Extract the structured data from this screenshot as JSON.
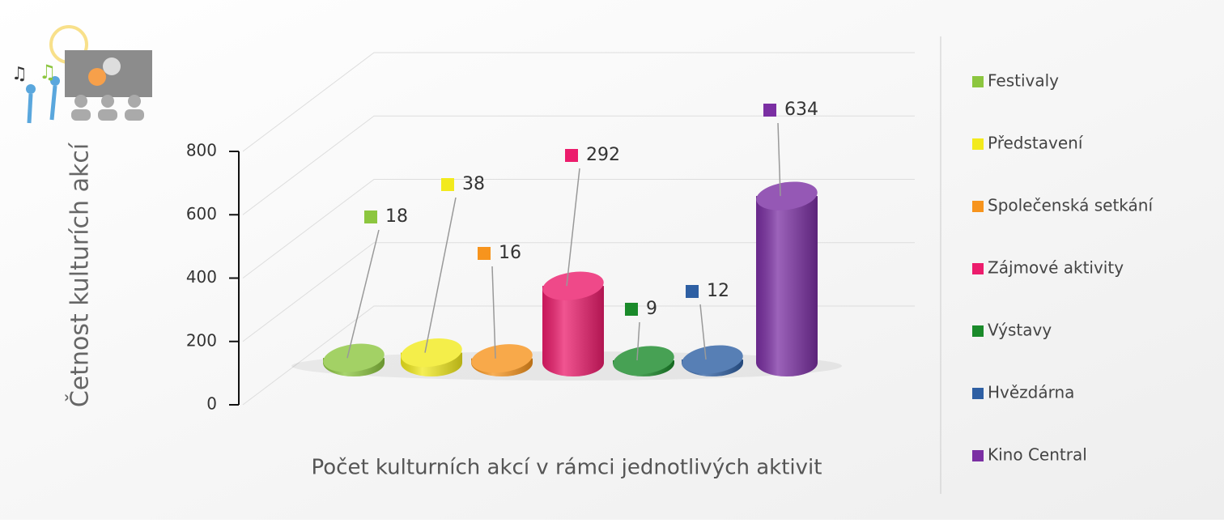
{
  "chart_data": {
    "type": "bar",
    "y_label": "Četnost kulturích akcí",
    "x_label": "Počet kulturních akcí v rámci jednotlivých aktivit",
    "categories": [
      "Festivaly",
      "Představení",
      "Společenská setkání",
      "Zájmové aktivity",
      "Výstavy",
      "Hvězdárna",
      "Kino Central"
    ],
    "values": [
      18,
      38,
      16,
      292,
      9,
      12,
      634
    ],
    "colors": [
      "#8cc63f",
      "#f2ea1d",
      "#f7941d",
      "#ec1c6c",
      "#1a8a2a",
      "#2e5fa3",
      "#7b2fa3"
    ],
    "ylim": [
      0,
      800
    ],
    "yticks": [
      0,
      200,
      400,
      600,
      800
    ],
    "grid": true
  }
}
